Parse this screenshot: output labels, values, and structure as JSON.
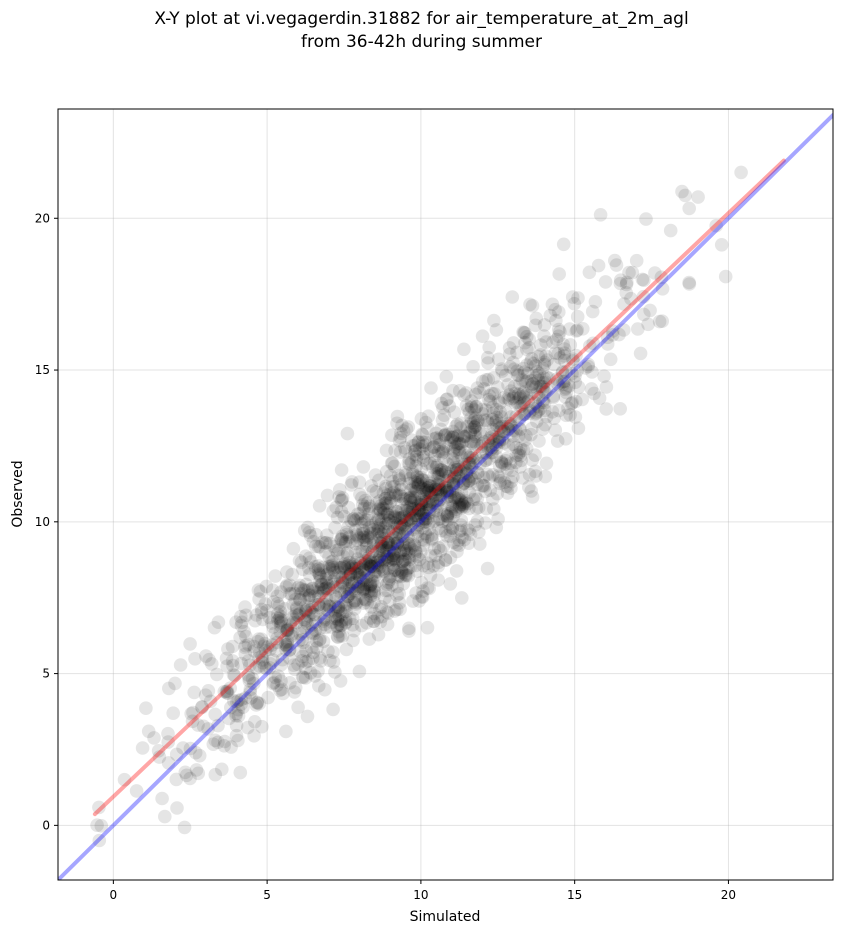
{
  "chart_data": {
    "type": "scatter",
    "title_line1": "X-Y plot at vi.vegagerdin.31882 for air_temperature_at_2m_agl",
    "title_line2": "from 36-42h during summer",
    "xlabel": "Simulated",
    "ylabel": "Observed",
    "xlim": [
      -1.8,
      23.4
    ],
    "ylim": [
      -1.8,
      23.6
    ],
    "xticks": [
      0,
      5,
      10,
      15,
      20
    ],
    "yticks": [
      0,
      5,
      10,
      15,
      20
    ],
    "grid": true,
    "series": [
      {
        "kind": "points",
        "color": "#000000",
        "opacity": 0.1,
        "n_points": 1800,
        "x_range": [
          -0.6,
          21.8
        ],
        "y_range": [
          -0.5,
          22.3
        ],
        "x_mean": 9.6,
        "x_sd": 3.4,
        "fit_slope": 0.96,
        "fit_intercept": 0.95,
        "residual_sd": 1.35
      },
      {
        "kind": "fit-line",
        "color": "#ff0000",
        "opacity": 0.35,
        "x": [
          -0.6,
          21.8
        ],
        "y": [
          0.37,
          21.9
        ]
      },
      {
        "kind": "identity-line",
        "color": "#0000ff",
        "opacity": 0.35,
        "x": [
          -1.8,
          23.4
        ],
        "y": [
          -1.8,
          23.4
        ]
      }
    ]
  }
}
